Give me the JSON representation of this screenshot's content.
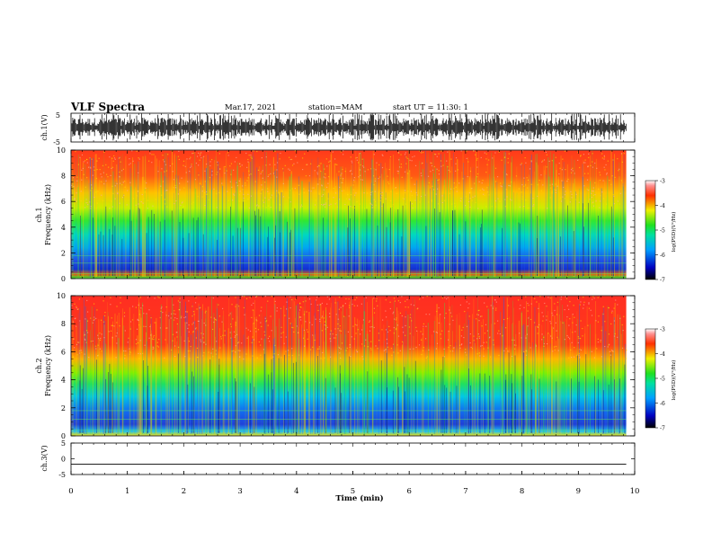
{
  "header": {
    "title": "VLF Spectra",
    "date": "Mar.17, 2021",
    "station": "station=MAM",
    "start": "start UT = 11:30: 1"
  },
  "chart_data": [
    {
      "type": "line",
      "panel": "ch1-waveform",
      "ylabel": "ch.1(V)",
      "ylim": [
        -5,
        5
      ],
      "yticks": [
        "5",
        "-5"
      ],
      "xlim": [
        0,
        10
      ],
      "note": "dense impulsive waveform"
    },
    {
      "type": "heatmap",
      "panel": "ch1-spectrogram",
      "ylabel_line1": "ch.1",
      "ylabel_line2": "Frequency (kHz)",
      "xlim": [
        0,
        9.85
      ],
      "ylim": [
        0,
        10
      ],
      "yticks": [
        "0",
        "2",
        "4",
        "6",
        "8",
        "10"
      ],
      "colorbar": {
        "label": "log(PSD)(V²/Hz)",
        "range": [
          -7,
          -3
        ],
        "ticks": [
          "-3",
          "-4",
          "-5",
          "-6",
          "-7"
        ]
      }
    },
    {
      "type": "heatmap",
      "panel": "ch2-spectrogram",
      "ylabel_line1": "ch.2",
      "ylabel_line2": "Frequency (kHz)",
      "xlim": [
        0,
        9.85
      ],
      "ylim": [
        0,
        10
      ],
      "yticks": [
        "0",
        "2",
        "4",
        "6",
        "8",
        "10"
      ],
      "colorbar": {
        "label": "log(PSD)(V²/Hz)",
        "range": [
          -7,
          -3
        ],
        "ticks": [
          "-3",
          "-4",
          "-5",
          "-6",
          "-7"
        ]
      }
    },
    {
      "type": "line",
      "panel": "ch3-waveform",
      "ylabel": "ch.3(V)",
      "ylim": [
        -5,
        5
      ],
      "yticks": [
        "5",
        "0",
        "-5"
      ],
      "x": [
        0,
        9.85
      ],
      "y": [
        -1.7,
        -1.7
      ]
    }
  ],
  "xaxis": {
    "label": "Time (min)",
    "ticks": [
      "0",
      "1",
      "2",
      "3",
      "4",
      "5",
      "6",
      "7",
      "8",
      "9",
      "10"
    ]
  }
}
